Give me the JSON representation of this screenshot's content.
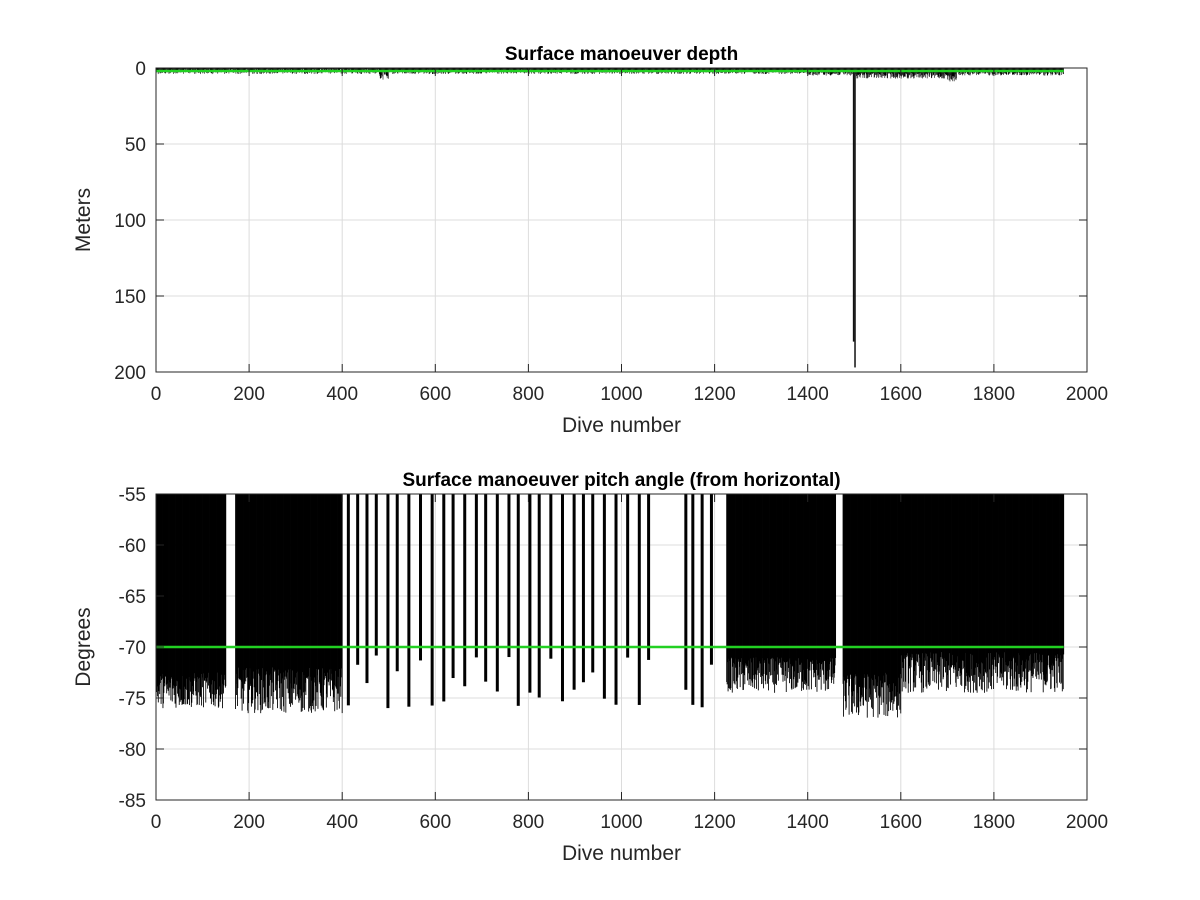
{
  "chart_data": [
    {
      "type": "bar",
      "title": "Surface manoeuver depth",
      "xlabel": "Dive number",
      "ylabel": "Meters",
      "xlim": [
        0,
        2000
      ],
      "ylim": [
        0,
        200
      ],
      "y_reversed": true,
      "xticks": [
        0,
        200,
        400,
        600,
        800,
        1000,
        1200,
        1400,
        1600,
        1800,
        2000
      ],
      "yticks": [
        0,
        50,
        100,
        150,
        200
      ],
      "grid": true,
      "reference_line": {
        "y": 2,
        "color": "#22d022"
      },
      "series": [
        {
          "values_by_range": [
            {
              "from": 1,
              "to": 480,
              "min": 0.5,
              "max": 4
            },
            {
              "from": 480,
              "to": 500,
              "min": 2,
              "max": 8
            },
            {
              "from": 500,
              "to": 1400,
              "min": 1,
              "max": 4
            },
            {
              "from": 1400,
              "to": 1497,
              "min": 2,
              "max": 5
            },
            {
              "from": 1497,
              "to": 1500,
              "min": 180,
              "max": 180
            },
            {
              "from": 1500,
              "to": 1503,
              "min": 197,
              "max": 197
            },
            {
              "from": 1503,
              "to": 1700,
              "min": 3,
              "max": 7
            },
            {
              "from": 1700,
              "to": 1720,
              "min": 4,
              "max": 9
            },
            {
              "from": 1720,
              "to": 1950,
              "min": 2,
              "max": 5
            }
          ]
        }
      ]
    },
    {
      "type": "bar",
      "title": "Surface manoeuver pitch angle (from horizontal)",
      "xlabel": "Dive number",
      "ylabel": "Degrees",
      "xlim": [
        0,
        2000
      ],
      "ylim": [
        -85,
        -55
      ],
      "xticks": [
        0,
        200,
        400,
        600,
        800,
        1000,
        1200,
        1400,
        1600,
        1800,
        2000
      ],
      "yticks": [
        -55,
        -60,
        -65,
        -70,
        -75,
        -80,
        -85
      ],
      "grid": true,
      "reference_line": {
        "y": -70,
        "color": "#22d022"
      },
      "series": [
        {
          "dense_ranges": [
            {
              "from": 1,
              "to": 150,
              "min": -76,
              "max": -72.5
            },
            {
              "from": 170,
              "to": 400,
              "min": -76.5,
              "max": -72
            },
            {
              "from": 1225,
              "to": 1460,
              "min": -74.5,
              "max": -71
            },
            {
              "from": 1475,
              "to": 1600,
              "min": -77,
              "max": -72.5
            },
            {
              "from": 1600,
              "to": 1950,
              "min": -74.5,
              "max": -70.5
            }
          ],
          "sparse_spikes_x": [
            410,
            430,
            450,
            470,
            495,
            515,
            540,
            565,
            590,
            615,
            635,
            660,
            685,
            705,
            730,
            755,
            775,
            800,
            820,
            845,
            870,
            895,
            915,
            935,
            960,
            985,
            1010,
            1035,
            1055,
            1135,
            1150,
            1170,
            1190
          ],
          "spike_tip_range": [
            -76,
            -70.5
          ]
        }
      ]
    }
  ]
}
